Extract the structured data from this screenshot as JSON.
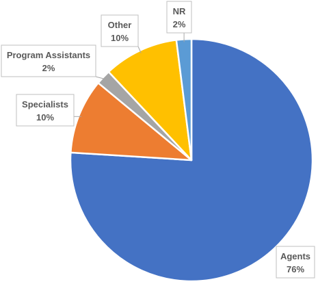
{
  "chart_data": {
    "type": "pie",
    "title": "",
    "slices": [
      {
        "name": "Agents",
        "value": 76,
        "percent_label": "76%",
        "color": "#4472C4"
      },
      {
        "name": "Specialists",
        "value": 10,
        "percent_label": "10%",
        "color": "#ED7D31"
      },
      {
        "name": "Program Assistants",
        "value": 2,
        "percent_label": "2%",
        "color": "#A5A5A5"
      },
      {
        "name": "Other",
        "value": 10,
        "percent_label": "10%",
        "color": "#FFC000"
      },
      {
        "name": "NR",
        "value": 2,
        "percent_label": "2%",
        "color": "#5B9BD5"
      }
    ],
    "start_angle_deg": 0,
    "direction": "clockwise",
    "data_labels": "category name and percentage, outside with leader lines",
    "legend": "none"
  }
}
